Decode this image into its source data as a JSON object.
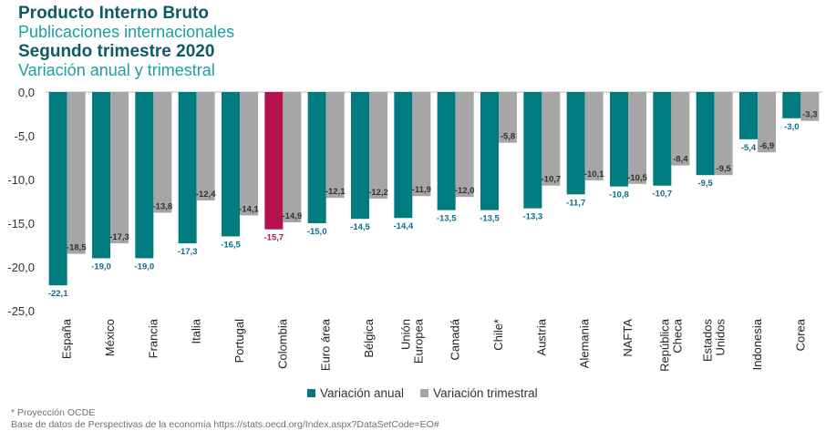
{
  "header": {
    "title": "Producto Interno Bruto",
    "subtitle1": "Publicaciones internacionales",
    "subtitle2": "Segundo trimestre 2020",
    "subtitle3": "Variación anual  y trimestral"
  },
  "colors": {
    "annual": "#007b7f",
    "quarterly": "#a6a6a6",
    "highlight": "#b5124f",
    "annual_label": "#0a6f8a",
    "quarterly_label": "#333333"
  },
  "chart_data": {
    "type": "bar",
    "categories": [
      [
        "España"
      ],
      [
        "México"
      ],
      [
        "Francia"
      ],
      [
        "Italia"
      ],
      [
        "Portugal"
      ],
      [
        "Colombia"
      ],
      [
        "Euro área"
      ],
      [
        "Bélgica"
      ],
      [
        "Unión",
        "Europea"
      ],
      [
        "Canadá"
      ],
      [
        "Chile*"
      ],
      [
        "Austria"
      ],
      [
        "Alemania"
      ],
      [
        "NAFTA"
      ],
      [
        "República",
        "Checa"
      ],
      [
        "Estados",
        "Unidos"
      ],
      [
        "Indonesia"
      ],
      [
        "Corea"
      ]
    ],
    "series": [
      {
        "name": "Variación anual",
        "values": [
          -22.1,
          -19.0,
          -19.0,
          -17.3,
          -16.5,
          -15.7,
          -15.0,
          -14.5,
          -14.4,
          -13.5,
          -13.5,
          -13.3,
          -11.7,
          -10.8,
          -10.7,
          -9.5,
          -5.4,
          -3.0
        ],
        "labels": [
          "-22,1",
          "-19,0",
          "-19,0",
          "-17,3",
          "-16,5",
          "-15,7",
          "-15,0",
          "-14,5",
          "-14,4",
          "-13,5",
          "-13,5",
          "-13,3",
          "-11,7",
          "-10,8",
          "-10,7",
          "-9,5",
          "-5,4",
          "-3,0"
        ]
      },
      {
        "name": "Variación trimestral",
        "values": [
          -18.5,
          -17.3,
          -13.8,
          -12.4,
          -14.1,
          -14.9,
          -12.1,
          -12.2,
          -11.9,
          -12.0,
          -5.8,
          -10.7,
          -10.1,
          -10.5,
          -8.4,
          -9.5,
          -6.9,
          -3.3
        ],
        "labels": [
          "-18,5",
          "-17,3",
          "-13,8",
          "-12,4",
          "-14,1",
          "-14,9",
          "-12,1",
          "-12,2",
          "-11,9",
          "-12,0",
          "-5,8",
          "-10,7",
          "-10,1",
          "-10,5",
          "-8,4",
          "-9,5",
          "-6,9",
          "-3,3"
        ]
      }
    ],
    "highlight_category": "Colombia",
    "ylim": [
      -25,
      0
    ],
    "yticks": [
      0,
      -5,
      -10,
      -15,
      -20,
      -25
    ],
    "ytick_labels": [
      "0,0",
      "-5,0",
      "-10,0",
      "-15,0",
      "-20,0",
      "-25,0"
    ],
    "grid": false,
    "legend_position": "bottom"
  },
  "footer": {
    "note": "* Proyección OCDE",
    "source": "Base de datos de Perspectivas de la economía https://stats.oecd.org/Index.aspx?DataSetCode=EO#"
  }
}
